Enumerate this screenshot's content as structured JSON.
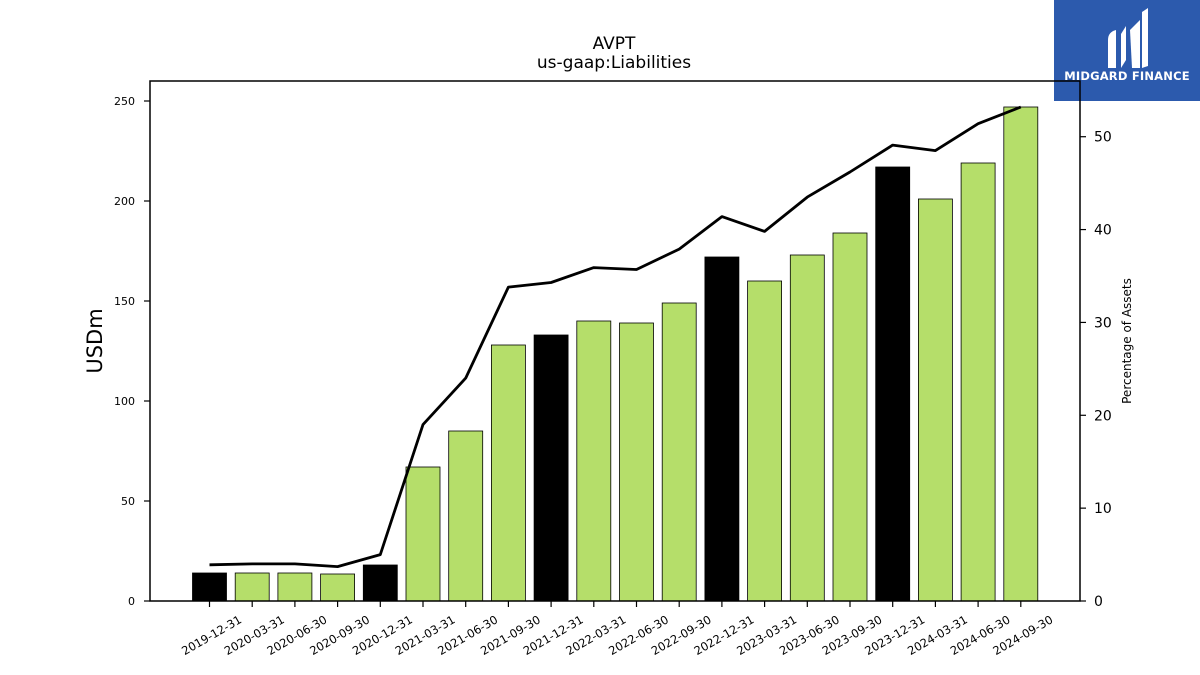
{
  "logo": {
    "text": "MIDGARD FINANCE",
    "icon": "midgard-m-logo-icon",
    "background": "#2c5aad"
  },
  "chart_data": {
    "type": "bar",
    "title": "AVPT",
    "subtitle": "us-gaap:Liabilities",
    "ylabel": "USDm",
    "y2label": "Percentage of Assets",
    "ylim": [
      0,
      260
    ],
    "y2lim": [
      0,
      56
    ],
    "yticks": [
      "0",
      "50",
      "100",
      "150",
      "200",
      "250"
    ],
    "y2ticks": [
      "0",
      "10",
      "20",
      "30",
      "40",
      "50"
    ],
    "grid": false,
    "categories": [
      "2019-12-31",
      "2020-03-31",
      "2020-06-30",
      "2020-09-30",
      "2020-12-31",
      "2021-03-31",
      "2021-06-30",
      "2021-09-30",
      "2021-12-31",
      "2022-03-31",
      "2022-06-30",
      "2022-09-30",
      "2022-12-31",
      "2023-03-31",
      "2023-06-30",
      "2023-09-30",
      "2023-12-31",
      "2024-03-31",
      "2024-06-30",
      "2024-09-30"
    ],
    "series": [
      {
        "type": "bar",
        "axis": "left",
        "values": [
          14,
          14,
          14,
          13.5,
          18,
          67,
          85,
          128,
          133,
          140,
          139,
          149,
          172,
          160,
          173,
          184,
          217,
          201,
          219,
          247
        ]
      },
      {
        "type": "line",
        "axis": "right",
        "values": [
          3.9,
          4.0,
          4.0,
          3.7,
          5.0,
          19.0,
          24.0,
          33.8,
          34.3,
          35.9,
          35.7,
          37.9,
          41.4,
          39.8,
          43.5,
          46.2,
          49.1,
          48.5,
          51.4,
          53.2
        ]
      }
    ],
    "colors": {
      "bar": "#b5de6a",
      "bar_year_end": "#000000",
      "line": "#000000"
    }
  }
}
